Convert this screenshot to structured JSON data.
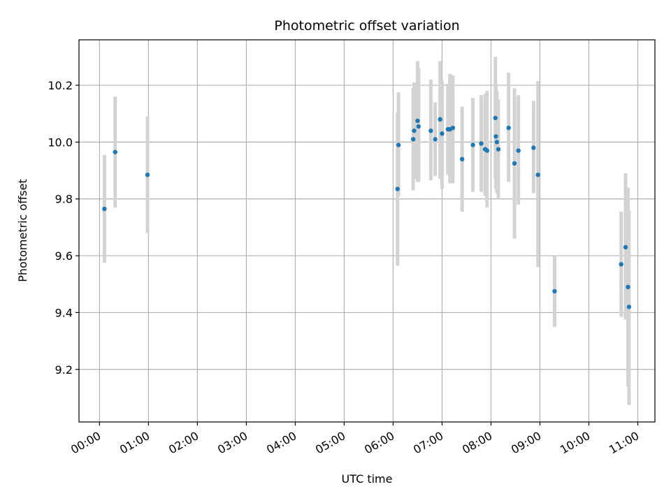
{
  "chart_data": {
    "type": "scatter",
    "title": "Photometric offset variation",
    "xlabel": "UTC time",
    "ylabel": "Photometric offset",
    "x_unit": "hours (UTC)",
    "xlim": [
      -0.42,
      11.35
    ],
    "ylim": [
      9.015,
      10.36
    ],
    "x_ticks": [
      {
        "value": 0,
        "label": "00:00"
      },
      {
        "value": 1,
        "label": "01:00"
      },
      {
        "value": 2,
        "label": "02:00"
      },
      {
        "value": 3,
        "label": "03:00"
      },
      {
        "value": 4,
        "label": "04:00"
      },
      {
        "value": 5,
        "label": "05:00"
      },
      {
        "value": 6,
        "label": "06:00"
      },
      {
        "value": 7,
        "label": "07:00"
      },
      {
        "value": 8,
        "label": "08:00"
      },
      {
        "value": 9,
        "label": "09:00"
      },
      {
        "value": 10,
        "label": "10:00"
      },
      {
        "value": 11,
        "label": "11:00"
      }
    ],
    "y_ticks": [
      {
        "value": 9.2,
        "label": "9.2"
      },
      {
        "value": 9.4,
        "label": "9.4"
      },
      {
        "value": 9.6,
        "label": "9.6"
      },
      {
        "value": 9.8,
        "label": "9.8"
      },
      {
        "value": 10.0,
        "label": "10.0"
      },
      {
        "value": 10.2,
        "label": "10.2"
      }
    ],
    "grid": true,
    "colors": {
      "point": "#1f77b4",
      "errorbar": "#d3d3d3",
      "grid": "#b0b0b0"
    },
    "points": [
      {
        "x": 0.1,
        "y": 9.765,
        "lo": 9.575,
        "hi": 9.955
      },
      {
        "x": 0.32,
        "y": 9.965,
        "lo": 9.77,
        "hi": 10.16
      },
      {
        "x": 0.98,
        "y": 9.885,
        "lo": 9.68,
        "hi": 10.09
      },
      {
        "x": 6.09,
        "y": 9.835,
        "lo": 9.565,
        "hi": 10.105
      },
      {
        "x": 6.11,
        "y": 9.99,
        "lo": 9.81,
        "hi": 10.175
      },
      {
        "x": 6.41,
        "y": 10.01,
        "lo": 9.83,
        "hi": 10.19
      },
      {
        "x": 6.43,
        "y": 10.04,
        "lo": 9.87,
        "hi": 10.21
      },
      {
        "x": 6.5,
        "y": 10.075,
        "lo": 9.86,
        "hi": 10.285
      },
      {
        "x": 6.52,
        "y": 10.055,
        "lo": 9.86,
        "hi": 10.26
      },
      {
        "x": 6.77,
        "y": 10.04,
        "lo": 9.865,
        "hi": 10.22
      },
      {
        "x": 6.86,
        "y": 10.01,
        "lo": 9.88,
        "hi": 10.14
      },
      {
        "x": 6.96,
        "y": 10.08,
        "lo": 9.87,
        "hi": 10.285
      },
      {
        "x": 7.0,
        "y": 10.03,
        "lo": 9.835,
        "hi": 10.215
      },
      {
        "x": 7.12,
        "y": 10.045,
        "lo": 9.885,
        "hi": 10.205
      },
      {
        "x": 7.16,
        "y": 10.045,
        "lo": 9.855,
        "hi": 10.24
      },
      {
        "x": 7.22,
        "y": 10.05,
        "lo": 9.855,
        "hi": 10.235
      },
      {
        "x": 7.41,
        "y": 9.94,
        "lo": 9.755,
        "hi": 10.125
      },
      {
        "x": 7.63,
        "y": 9.99,
        "lo": 9.825,
        "hi": 10.155
      },
      {
        "x": 7.8,
        "y": 9.995,
        "lo": 9.825,
        "hi": 10.165
      },
      {
        "x": 7.88,
        "y": 9.975,
        "lo": 9.81,
        "hi": 10.17
      },
      {
        "x": 7.92,
        "y": 9.97,
        "lo": 9.77,
        "hi": 10.18
      },
      {
        "x": 8.09,
        "y": 10.085,
        "lo": 9.87,
        "hi": 10.3
      },
      {
        "x": 8.1,
        "y": 10.02,
        "lo": 9.835,
        "hi": 10.205
      },
      {
        "x": 8.12,
        "y": 10.0,
        "lo": 9.82,
        "hi": 10.18
      },
      {
        "x": 8.15,
        "y": 9.975,
        "lo": 9.8,
        "hi": 10.15
      },
      {
        "x": 8.36,
        "y": 10.05,
        "lo": 9.86,
        "hi": 10.245
      },
      {
        "x": 8.48,
        "y": 9.925,
        "lo": 9.66,
        "hi": 10.19
      },
      {
        "x": 8.56,
        "y": 9.97,
        "lo": 9.78,
        "hi": 10.165
      },
      {
        "x": 8.87,
        "y": 9.98,
        "lo": 9.82,
        "hi": 10.145
      },
      {
        "x": 8.96,
        "y": 9.885,
        "lo": 9.56,
        "hi": 10.215
      },
      {
        "x": 9.3,
        "y": 9.475,
        "lo": 9.35,
        "hi": 9.6
      },
      {
        "x": 10.66,
        "y": 9.57,
        "lo": 9.385,
        "hi": 9.755
      },
      {
        "x": 10.75,
        "y": 9.63,
        "lo": 9.375,
        "hi": 9.89
      },
      {
        "x": 10.8,
        "y": 9.49,
        "lo": 9.14,
        "hi": 9.84
      },
      {
        "x": 10.82,
        "y": 9.42,
        "lo": 9.075,
        "hi": 9.76
      }
    ]
  }
}
